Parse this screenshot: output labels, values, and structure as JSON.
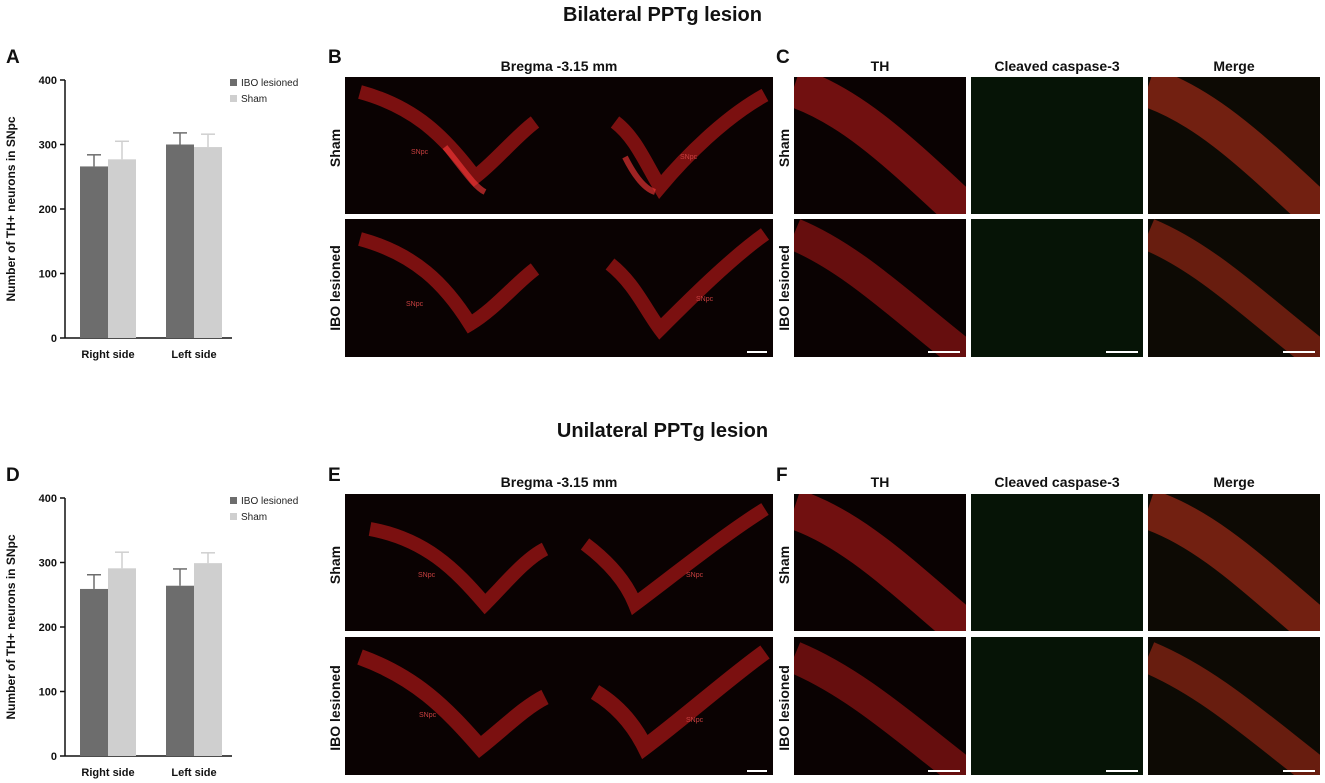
{
  "sections": [
    {
      "title": "Bilateral PPTg lesion",
      "letters": [
        "A",
        "B",
        "C"
      ]
    },
    {
      "title": "Unilateral PPTg lesion",
      "letters": [
        "D",
        "E",
        "F"
      ]
    }
  ],
  "panel_bregma": "Bregma -3.15 mm",
  "channel_headers": [
    "TH",
    "Cleaved caspase-3",
    "Merge"
  ],
  "row_labels": [
    "Sham",
    "IBO lesioned"
  ],
  "region_label": "SNpc",
  "colors": {
    "ibo": "#6d6d6d",
    "sham": "#cfcfcf",
    "th_red": "#d81d1d",
    "caspase_green": "#1f5a1f"
  },
  "chart_data": [
    {
      "type": "bar",
      "title": "",
      "ylabel": "Number of TH+ neurons in SNpc",
      "xlabel": "",
      "ylim": [
        0,
        400
      ],
      "yticks": [
        0,
        100,
        200,
        300,
        400
      ],
      "categories": [
        "Right side",
        "Left side"
      ],
      "legend_position": "top-right",
      "series": [
        {
          "name": "IBO lesioned",
          "values": [
            266,
            300
          ],
          "errors": [
            18,
            18
          ]
        },
        {
          "name": "Sham",
          "values": [
            277,
            296
          ],
          "errors": [
            28,
            20
          ]
        }
      ]
    },
    {
      "type": "bar",
      "title": "",
      "ylabel": "Number of TH+ neurons in SNpc",
      "xlabel": "",
      "ylim": [
        0,
        400
      ],
      "yticks": [
        0,
        100,
        200,
        300,
        400
      ],
      "categories": [
        "Right side",
        "Left side"
      ],
      "legend_position": "top-right",
      "series": [
        {
          "name": "IBO lesioned",
          "values": [
            259,
            264
          ],
          "errors": [
            22,
            26
          ]
        },
        {
          "name": "Sham",
          "values": [
            291,
            299
          ],
          "errors": [
            25,
            16
          ]
        }
      ]
    }
  ]
}
